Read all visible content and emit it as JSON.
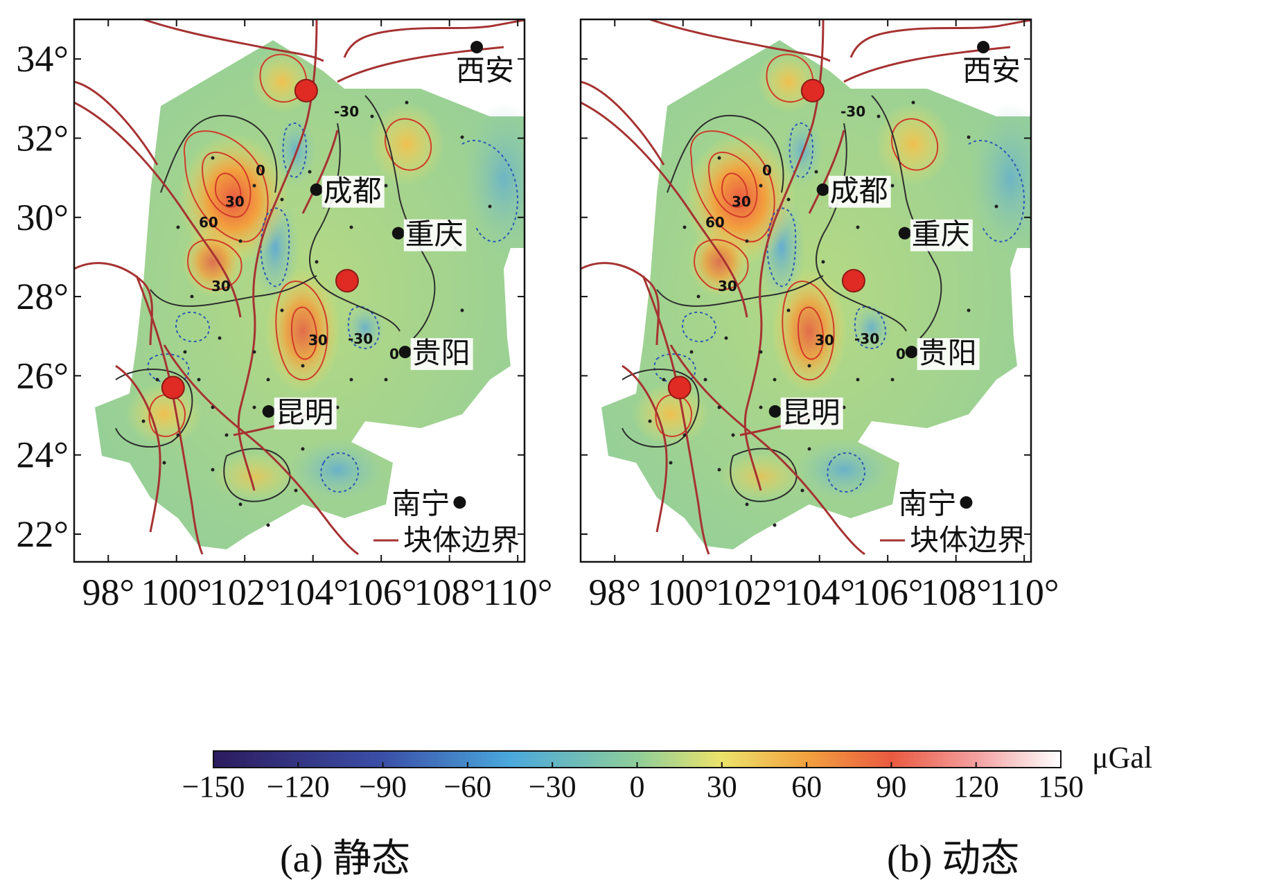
{
  "figure": {
    "panels": [
      {
        "id": "a",
        "caption": "(a) 静态"
      },
      {
        "id": "b",
        "caption": "(b) 动态"
      }
    ],
    "axes": {
      "lon_ticks": [
        "98°",
        "100°",
        "102°",
        "104°",
        "106°",
        "108°",
        "110°"
      ],
      "lat_ticks": [
        "34°",
        "32°",
        "30°",
        "28°",
        "26°",
        "24°",
        "22°"
      ],
      "lon_values": [
        98,
        100,
        102,
        104,
        106,
        108,
        110
      ],
      "lat_values": [
        34,
        32,
        30,
        28,
        26,
        24,
        22
      ],
      "lon_range": [
        97,
        110.2
      ],
      "lat_range": [
        21.3,
        35
      ]
    },
    "cities": [
      {
        "name": "西安",
        "lon": 108.8,
        "lat": 34.3
      },
      {
        "name": "成都",
        "lon": 104.1,
        "lat": 30.7
      },
      {
        "name": "重庆",
        "lon": 106.5,
        "lat": 29.6
      },
      {
        "name": "贵阳",
        "lon": 106.7,
        "lat": 26.6
      },
      {
        "name": "昆明",
        "lon": 102.7,
        "lat": 25.1
      },
      {
        "name": "南宁",
        "lon": 108.3,
        "lat": 22.8
      }
    ],
    "epicenters": [
      {
        "lon": 103.8,
        "lat": 33.2
      },
      {
        "lon": 105.0,
        "lat": 28.4
      },
      {
        "lon": 99.9,
        "lat": 25.7
      }
    ],
    "contour_labels": [
      "30",
      "60",
      "0",
      "-30"
    ],
    "legend": {
      "label": "块体边界",
      "color": "#a63232"
    },
    "colorbar": {
      "ticks": [
        "−150",
        "−120",
        "−90",
        "−60",
        "−30",
        "0",
        "30",
        "60",
        "90",
        "120",
        "150"
      ],
      "unit": "μGal",
      "colors": [
        "#2c1b5e",
        "#3b4fa8",
        "#4aa8dc",
        "#8fce9a",
        "#ece36a",
        "#f2a13f",
        "#ea5a41",
        "#f4a0a0",
        "#ffffff"
      ]
    }
  }
}
